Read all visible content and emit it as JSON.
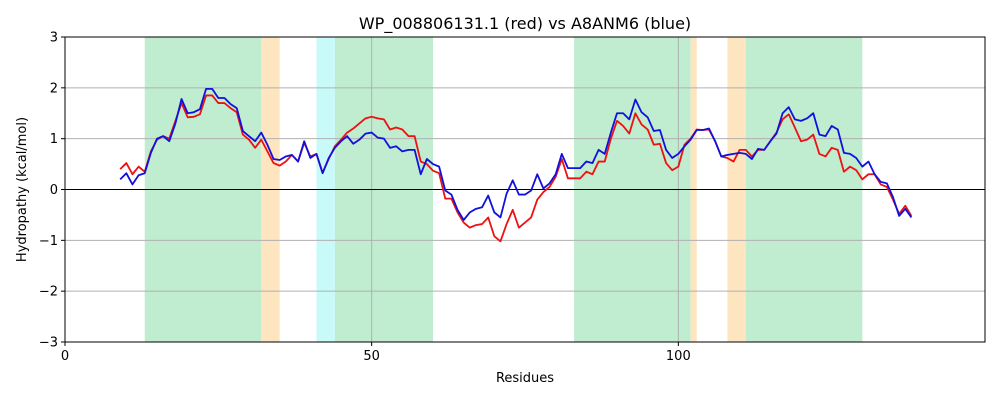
{
  "chart_data": {
    "type": "line",
    "title": "WP_008806131.1 (red) vs A8ANM6 (blue)",
    "xlabel": "Residues",
    "ylabel": "Hydropathy (kcal/mol)",
    "xlim": [
      0,
      150
    ],
    "ylim": [
      -3,
      3
    ],
    "xticks": [
      0,
      50,
      100
    ],
    "yticks": [
      -3,
      -2,
      -1,
      0,
      1,
      2,
      3
    ],
    "grid": true,
    "zero_line": true,
    "regions": [
      {
        "start": 13,
        "end": 32,
        "color": "#c0ecd0"
      },
      {
        "start": 32,
        "end": 35,
        "color": "#fde5c0"
      },
      {
        "start": 41,
        "end": 44,
        "color": "#c8fafa"
      },
      {
        "start": 44,
        "end": 60,
        "color": "#c0ecd0"
      },
      {
        "start": 83,
        "end": 102,
        "color": "#c0ecd0"
      },
      {
        "start": 102,
        "end": 103,
        "color": "#fde5c0"
      },
      {
        "start": 108,
        "end": 111,
        "color": "#fde5c0"
      },
      {
        "start": 111,
        "end": 130,
        "color": "#c0ecd0"
      }
    ],
    "x": [
      9,
      10,
      11,
      12,
      13,
      14,
      15,
      16,
      17,
      18,
      19,
      20,
      21,
      22,
      23,
      24,
      25,
      26,
      27,
      28,
      29,
      30,
      31,
      32,
      33,
      34,
      35,
      36,
      37,
      38,
      39,
      40,
      41,
      42,
      43,
      44,
      45,
      46,
      47,
      48,
      49,
      50,
      51,
      52,
      53,
      54,
      55,
      56,
      57,
      58,
      59,
      60,
      61,
      62,
      63,
      64,
      65,
      66,
      67,
      68,
      69,
      70,
      71,
      72,
      73,
      74,
      75,
      76,
      77,
      78,
      79,
      80,
      81,
      82,
      83,
      84,
      85,
      86,
      87,
      88,
      89,
      90,
      91,
      92,
      93,
      94,
      95,
      96,
      97,
      98,
      99,
      100,
      101,
      102,
      103,
      104,
      105,
      106,
      107,
      108,
      109,
      110,
      111,
      112,
      113,
      114,
      115,
      116,
      117,
      118,
      119,
      120,
      121,
      122,
      123,
      124,
      125,
      126,
      127,
      128,
      129,
      130,
      131,
      132,
      133,
      134,
      135,
      136,
      137,
      138
    ],
    "series": [
      {
        "color": "#ee1111",
        "values": [
          0.4,
          0.52,
          0.3,
          0.45,
          0.35,
          0.75,
          0.98,
          1.05,
          1.0,
          1.35,
          1.7,
          1.42,
          1.43,
          1.48,
          1.85,
          1.85,
          1.7,
          1.7,
          1.6,
          1.52,
          1.08,
          0.98,
          0.82,
          0.98,
          0.75,
          0.52,
          0.47,
          0.55,
          0.68,
          0.55,
          0.92,
          0.65,
          0.7,
          0.33,
          0.6,
          0.85,
          0.98,
          1.12,
          1.2,
          1.3,
          1.4,
          1.43,
          1.4,
          1.38,
          1.18,
          1.22,
          1.18,
          1.05,
          1.05,
          0.55,
          0.5,
          0.37,
          0.32,
          -0.18,
          -0.18,
          -0.45,
          -0.65,
          -0.75,
          -0.7,
          -0.68,
          -0.55,
          -0.92,
          -1.02,
          -0.68,
          -0.4,
          -0.75,
          -0.65,
          -0.55,
          -0.2,
          -0.05,
          0.05,
          0.25,
          0.6,
          0.22,
          0.22,
          0.22,
          0.35,
          0.3,
          0.55,
          0.55,
          1.0,
          1.35,
          1.25,
          1.1,
          1.5,
          1.28,
          1.18,
          0.88,
          0.9,
          0.52,
          0.38,
          0.45,
          0.88,
          1.0,
          1.18,
          1.17,
          1.18,
          0.95,
          0.65,
          0.62,
          0.55,
          0.78,
          0.78,
          0.65,
          0.78,
          0.78,
          0.95,
          1.12,
          1.38,
          1.48,
          1.22,
          0.95,
          0.98,
          1.08,
          0.7,
          0.65,
          0.82,
          0.78,
          0.35,
          0.45,
          0.38,
          0.2,
          0.3,
          0.3,
          0.1,
          0.05,
          -0.2,
          -0.48,
          -0.32,
          -0.52
        ]
      },
      {
        "color": "#1111dd",
        "values": [
          0.2,
          0.32,
          0.1,
          0.28,
          0.32,
          0.72,
          1.0,
          1.05,
          0.95,
          1.3,
          1.78,
          1.5,
          1.52,
          1.58,
          1.98,
          1.98,
          1.8,
          1.8,
          1.68,
          1.6,
          1.15,
          1.05,
          0.95,
          1.12,
          0.88,
          0.6,
          0.58,
          0.65,
          0.68,
          0.55,
          0.95,
          0.62,
          0.7,
          0.32,
          0.62,
          0.82,
          0.95,
          1.05,
          0.9,
          0.98,
          1.1,
          1.12,
          1.02,
          1.0,
          0.82,
          0.85,
          0.75,
          0.78,
          0.78,
          0.3,
          0.6,
          0.5,
          0.45,
          -0.02,
          -0.1,
          -0.4,
          -0.6,
          -0.45,
          -0.38,
          -0.35,
          -0.12,
          -0.45,
          -0.55,
          -0.08,
          0.18,
          -0.1,
          -0.1,
          -0.02,
          0.3,
          0.02,
          0.12,
          0.3,
          0.7,
          0.42,
          0.42,
          0.42,
          0.55,
          0.52,
          0.78,
          0.7,
          1.12,
          1.5,
          1.5,
          1.38,
          1.77,
          1.52,
          1.42,
          1.15,
          1.17,
          0.78,
          0.62,
          0.7,
          0.85,
          0.98,
          1.17,
          1.17,
          1.2,
          0.95,
          0.65,
          0.68,
          0.7,
          0.72,
          0.7,
          0.6,
          0.8,
          0.78,
          0.95,
          1.1,
          1.5,
          1.62,
          1.38,
          1.35,
          1.4,
          1.5,
          1.08,
          1.05,
          1.25,
          1.18,
          0.72,
          0.7,
          0.62,
          0.45,
          0.55,
          0.3,
          0.15,
          0.12,
          -0.15,
          -0.52,
          -0.38,
          -0.55
        ]
      }
    ]
  }
}
